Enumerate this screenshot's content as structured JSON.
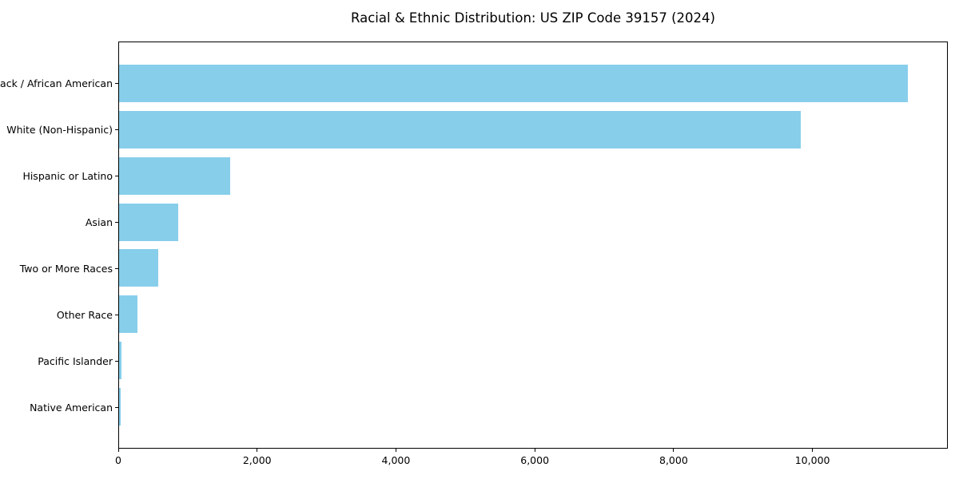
{
  "chart_data": {
    "type": "bar",
    "orientation": "horizontal",
    "title": "Racial & Ethnic Distribution: US ZIP Code 39157 (2024)",
    "categories": [
      "Black / African American",
      "White (Non-Hispanic)",
      "Hispanic or Latino",
      "Asian",
      "Two or More Races",
      "Other Race",
      "Pacific Islander",
      "Native American"
    ],
    "values": [
      11380,
      9840,
      1600,
      855,
      560,
      260,
      30,
      25
    ],
    "xlabel": "",
    "ylabel": "",
    "xlim": [
      0,
      11950
    ],
    "xticks": [
      0,
      2000,
      4000,
      6000,
      8000,
      10000
    ],
    "xtick_labels": [
      "0",
      "2,000",
      "4,000",
      "6,000",
      "8,000",
      "10,000"
    ],
    "bar_color": "#87CEEB",
    "axis_color": "#000000",
    "background_color": "#ffffff",
    "grid": false,
    "legend": null
  }
}
